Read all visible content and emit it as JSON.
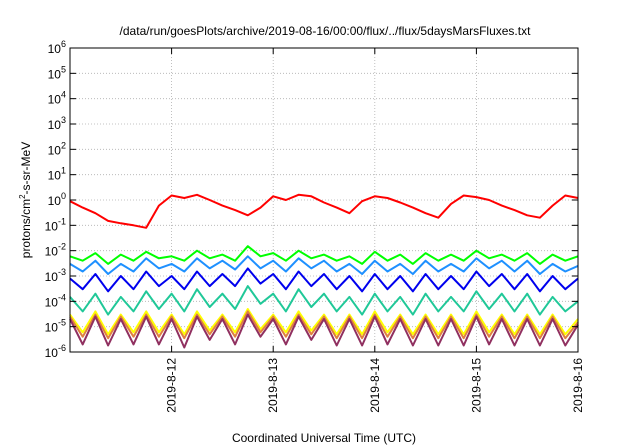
{
  "chart_data": {
    "type": "line",
    "title": "/data/run/goesPlots/archive/2019-08-16/00:00/flux/../flux/5daysMarsFluxes.txt",
    "xlabel": "Coordinated Universal Time (UTC)",
    "ylabel": {
      "main": "protons/cm",
      "sup": "2",
      "rest": "-s-sr-MeV"
    },
    "y_scale": "log",
    "ylim": [
      1e-06,
      1000000.0
    ],
    "xlim": [
      "2019-08-11 00:00",
      "2019-08-16 00:00"
    ],
    "grid": true,
    "y_ticks": [
      {
        "value": 1e-06,
        "base": "10",
        "exp": "-6"
      },
      {
        "value": 1e-05,
        "base": "10",
        "exp": "-5"
      },
      {
        "value": 0.0001,
        "base": "10",
        "exp": "-4"
      },
      {
        "value": 0.001,
        "base": "10",
        "exp": "-3"
      },
      {
        "value": 0.01,
        "base": "10",
        "exp": "-2"
      },
      {
        "value": 0.1,
        "base": "10",
        "exp": "-1"
      },
      {
        "value": 1,
        "base": "10",
        "exp": "0"
      },
      {
        "value": 10,
        "base": "10",
        "exp": "1"
      },
      {
        "value": 100,
        "base": "10",
        "exp": "2"
      },
      {
        "value": 1000,
        "base": "10",
        "exp": "3"
      },
      {
        "value": 10000,
        "base": "10",
        "exp": "4"
      },
      {
        "value": 100000,
        "base": "10",
        "exp": "5"
      },
      {
        "value": 1000000,
        "base": "10",
        "exp": "6"
      }
    ],
    "x_ticks": [
      {
        "date": "2019-08-12",
        "label": "2019-8-12"
      },
      {
        "date": "2019-08-13",
        "label": "2019-8-13"
      },
      {
        "date": "2019-08-14",
        "label": "2019-8-14"
      },
      {
        "date": "2019-08-15",
        "label": "2019-8-15"
      },
      {
        "date": "2019-08-16",
        "label": "2019-8-16"
      }
    ],
    "x": [
      "2019-08-11 00:00",
      "2019-08-11 03:00",
      "2019-08-11 06:00",
      "2019-08-11 09:00",
      "2019-08-11 12:00",
      "2019-08-11 15:00",
      "2019-08-11 18:00",
      "2019-08-11 21:00",
      "2019-08-12 00:00",
      "2019-08-12 03:00",
      "2019-08-12 06:00",
      "2019-08-12 09:00",
      "2019-08-12 12:00",
      "2019-08-12 15:00",
      "2019-08-12 18:00",
      "2019-08-12 21:00",
      "2019-08-13 00:00",
      "2019-08-13 03:00",
      "2019-08-13 06:00",
      "2019-08-13 09:00",
      "2019-08-13 12:00",
      "2019-08-13 15:00",
      "2019-08-13 18:00",
      "2019-08-13 21:00",
      "2019-08-14 00:00",
      "2019-08-14 03:00",
      "2019-08-14 06:00",
      "2019-08-14 09:00",
      "2019-08-14 12:00",
      "2019-08-14 15:00",
      "2019-08-14 18:00",
      "2019-08-14 21:00",
      "2019-08-15 00:00",
      "2019-08-15 03:00",
      "2019-08-15 06:00",
      "2019-08-15 09:00",
      "2019-08-15 12:00",
      "2019-08-15 15:00",
      "2019-08-15 18:00",
      "2019-08-15 21:00",
      "2019-08-16 00:00"
    ],
    "series": [
      {
        "color": "#ff0000",
        "values": [
          0.9,
          0.5,
          0.3,
          0.15,
          0.12,
          0.1,
          0.08,
          0.6,
          1.5,
          1.2,
          1.6,
          1.0,
          0.6,
          0.4,
          0.25,
          0.5,
          1.4,
          1.0,
          1.6,
          1.4,
          0.8,
          0.5,
          0.3,
          0.9,
          1.4,
          1.2,
          0.8,
          0.5,
          0.3,
          0.2,
          0.7,
          1.5,
          1.3,
          1.0,
          0.6,
          0.4,
          0.25,
          0.2,
          0.6,
          1.5,
          1.2
        ]
      },
      {
        "color": "#00ff00",
        "values": [
          0.006,
          0.004,
          0.008,
          0.003,
          0.007,
          0.004,
          0.009,
          0.005,
          0.006,
          0.004,
          0.01,
          0.005,
          0.007,
          0.004,
          0.015,
          0.006,
          0.008,
          0.004,
          0.01,
          0.005,
          0.007,
          0.004,
          0.006,
          0.003,
          0.009,
          0.004,
          0.007,
          0.003,
          0.008,
          0.004,
          0.007,
          0.004,
          0.01,
          0.005,
          0.007,
          0.004,
          0.008,
          0.003,
          0.007,
          0.004,
          0.006
        ]
      },
      {
        "color": "#1e90ff",
        "values": [
          0.003,
          0.0015,
          0.004,
          0.0012,
          0.003,
          0.0015,
          0.005,
          0.002,
          0.003,
          0.0015,
          0.005,
          0.002,
          0.004,
          0.0018,
          0.006,
          0.002,
          0.004,
          0.0015,
          0.005,
          0.002,
          0.004,
          0.0015,
          0.003,
          0.0012,
          0.004,
          0.0015,
          0.003,
          0.0012,
          0.004,
          0.0015,
          0.003,
          0.0015,
          0.005,
          0.002,
          0.004,
          0.0015,
          0.004,
          0.0012,
          0.003,
          0.0015,
          0.0025
        ]
      },
      {
        "color": "#0000ee",
        "values": [
          0.0008,
          0.0003,
          0.0012,
          0.00025,
          0.001,
          0.0003,
          0.0015,
          0.0004,
          0.001,
          0.0003,
          0.0015,
          0.0004,
          0.0012,
          0.0004,
          0.002,
          0.0005,
          0.0012,
          0.0003,
          0.0015,
          0.0004,
          0.0012,
          0.0003,
          0.001,
          0.00025,
          0.0012,
          0.0003,
          0.001,
          0.00025,
          0.0012,
          0.0003,
          0.001,
          0.0003,
          0.0015,
          0.0004,
          0.0012,
          0.0003,
          0.0012,
          0.00025,
          0.001,
          0.0003,
          0.0008
        ]
      },
      {
        "color": "#20c898",
        "values": [
          0.00015,
          4e-05,
          0.0002,
          3e-05,
          0.00015,
          4e-05,
          0.00025,
          5e-05,
          0.0002,
          4e-05,
          0.0003,
          6e-05,
          0.0002,
          5e-05,
          0.0004,
          8e-05,
          0.0002,
          4e-05,
          0.0003,
          6e-05,
          0.0002,
          4e-05,
          0.00015,
          3e-05,
          0.0002,
          4e-05,
          0.00015,
          3e-05,
          0.0002,
          4e-05,
          0.00015,
          4e-05,
          0.00025,
          5e-05,
          0.0002,
          4e-05,
          0.0002,
          3e-05,
          0.00015,
          4e-05,
          0.0001
        ]
      },
      {
        "color": "#ffff00",
        "values": [
          3e-05,
          6e-06,
          4e-05,
          5e-06,
          3e-05,
          6e-06,
          4e-05,
          6e-06,
          3e-05,
          5e-06,
          4e-05,
          7e-06,
          3e-05,
          6e-06,
          5e-05,
          8e-06,
          3e-05,
          6e-06,
          4e-05,
          7e-06,
          3e-05,
          5e-06,
          3e-05,
          5e-06,
          4e-05,
          6e-06,
          3e-05,
          5e-06,
          3e-05,
          5e-06,
          3e-05,
          5e-06,
          4e-05,
          6e-06,
          3e-05,
          5e-06,
          3e-05,
          5e-06,
          3e-05,
          5e-06,
          2e-05
        ]
      },
      {
        "color": "#e08040",
        "values": [
          2.5e-05,
          4e-06,
          3e-05,
          3.5e-06,
          2.5e-05,
          4e-06,
          3e-05,
          4e-06,
          2.5e-05,
          3.5e-06,
          3e-05,
          5e-06,
          2.5e-05,
          4e-06,
          4e-05,
          6e-06,
          2.5e-05,
          4e-06,
          3e-05,
          5e-06,
          2.5e-05,
          3.5e-06,
          2.5e-05,
          3.5e-06,
          3e-05,
          4e-06,
          2.5e-05,
          3.5e-06,
          2.5e-05,
          3.5e-06,
          2.5e-05,
          3.5e-06,
          3e-05,
          4e-06,
          2.5e-05,
          3.5e-06,
          2.5e-05,
          3.5e-06,
          2.5e-05,
          3.5e-06,
          1.5e-05
        ]
      },
      {
        "color": "#903060",
        "values": [
          2e-05,
          2e-06,
          2.5e-05,
          1.8e-06,
          2e-05,
          2e-06,
          2.5e-05,
          2e-06,
          2e-05,
          1.5e-06,
          2.5e-05,
          3e-06,
          2e-05,
          2e-06,
          3e-05,
          4e-06,
          2e-05,
          2e-06,
          2.5e-05,
          3e-06,
          2e-05,
          1.8e-06,
          2e-05,
          1.8e-06,
          2.5e-05,
          2e-06,
          2e-05,
          1.8e-06,
          2e-05,
          1.8e-06,
          2e-05,
          1.8e-06,
          2.5e-05,
          2e-06,
          2e-05,
          1.8e-06,
          2e-05,
          1.8e-06,
          2e-05,
          1.8e-06,
          1.2e-05
        ]
      }
    ]
  }
}
